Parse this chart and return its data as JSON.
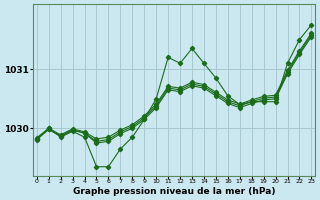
{
  "title": "Graphe pression niveau de la mer (hPa)",
  "bg_color": "#cbe8f0",
  "grid_color": "#a8c8d0",
  "line_color": "#1a6b1a",
  "x_ticks": [
    0,
    1,
    2,
    3,
    4,
    5,
    6,
    7,
    8,
    9,
    10,
    11,
    12,
    13,
    14,
    15,
    16,
    17,
    18,
    19,
    20,
    21,
    22,
    23
  ],
  "y_ticks": [
    1030,
    1031
  ],
  "ylim": [
    1029.2,
    1032.1
  ],
  "xlim": [
    -0.3,
    23.3
  ],
  "series": [
    [
      1029.8,
      1030.0,
      1029.85,
      1029.95,
      1029.85,
      1029.35,
      1029.35,
      1029.65,
      1029.85,
      1030.15,
      1030.5,
      1031.2,
      1031.1,
      1031.35,
      1031.1,
      1030.85,
      1030.55,
      1030.4,
      1030.45,
      1030.45,
      1030.45,
      1031.1,
      1031.5,
      1031.75
    ],
    [
      1029.82,
      1029.98,
      1029.87,
      1029.97,
      1029.92,
      1029.75,
      1029.78,
      1029.91,
      1030.0,
      1030.15,
      1030.35,
      1030.65,
      1030.62,
      1030.72,
      1030.68,
      1030.55,
      1030.42,
      1030.35,
      1030.42,
      1030.48,
      1030.5,
      1030.92,
      1031.25,
      1031.55
    ],
    [
      1029.82,
      1029.98,
      1029.87,
      1029.97,
      1029.92,
      1029.78,
      1029.81,
      1029.94,
      1030.03,
      1030.18,
      1030.38,
      1030.68,
      1030.65,
      1030.75,
      1030.71,
      1030.58,
      1030.45,
      1030.38,
      1030.45,
      1030.51,
      1030.53,
      1030.95,
      1031.28,
      1031.58
    ],
    [
      1029.84,
      1030.0,
      1029.89,
      1029.99,
      1029.94,
      1029.82,
      1029.85,
      1029.97,
      1030.06,
      1030.21,
      1030.41,
      1030.71,
      1030.68,
      1030.78,
      1030.74,
      1030.61,
      1030.48,
      1030.41,
      1030.48,
      1030.54,
      1030.56,
      1030.98,
      1031.31,
      1031.61
    ]
  ]
}
